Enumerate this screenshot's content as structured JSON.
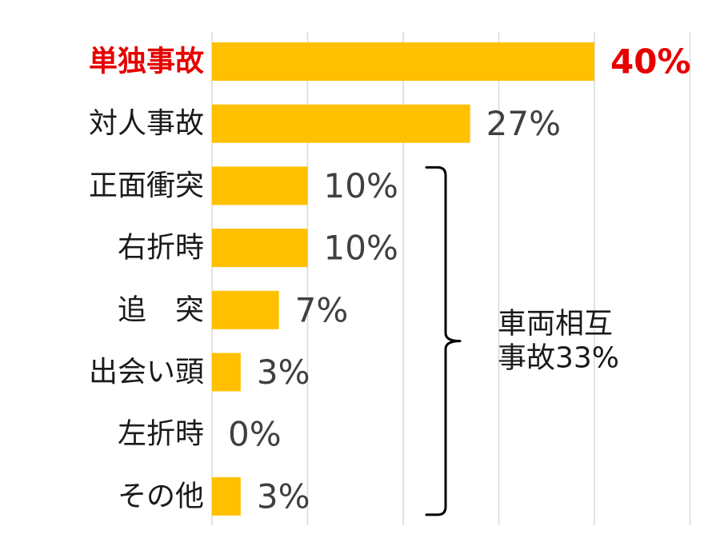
{
  "chart_data": {
    "type": "bar",
    "orientation": "horizontal",
    "categories": [
      "単独事故",
      "対人事故",
      "正面衝突",
      "右折時",
      "追　突",
      "出会い頭",
      "左折時",
      "その他"
    ],
    "values": [
      40,
      27,
      10,
      10,
      7,
      3,
      0,
      3
    ],
    "value_labels": [
      "40%",
      "27%",
      "10%",
      "10%",
      "7%",
      "3%",
      "0%",
      "3%"
    ],
    "highlight_index": 0,
    "xlim": [
      0,
      50
    ],
    "grid_step": 10,
    "grid": true,
    "legend": "none",
    "colors": {
      "bar": "#ffc000",
      "highlight_text": "#e60000",
      "text": "#1a1a1a",
      "value_text": "#404040",
      "grid": "#d9d9d9"
    },
    "annotation": {
      "type": "brace",
      "from_index": 2,
      "to_index": 7,
      "lines": [
        "車両相互",
        "事故33%"
      ]
    }
  }
}
